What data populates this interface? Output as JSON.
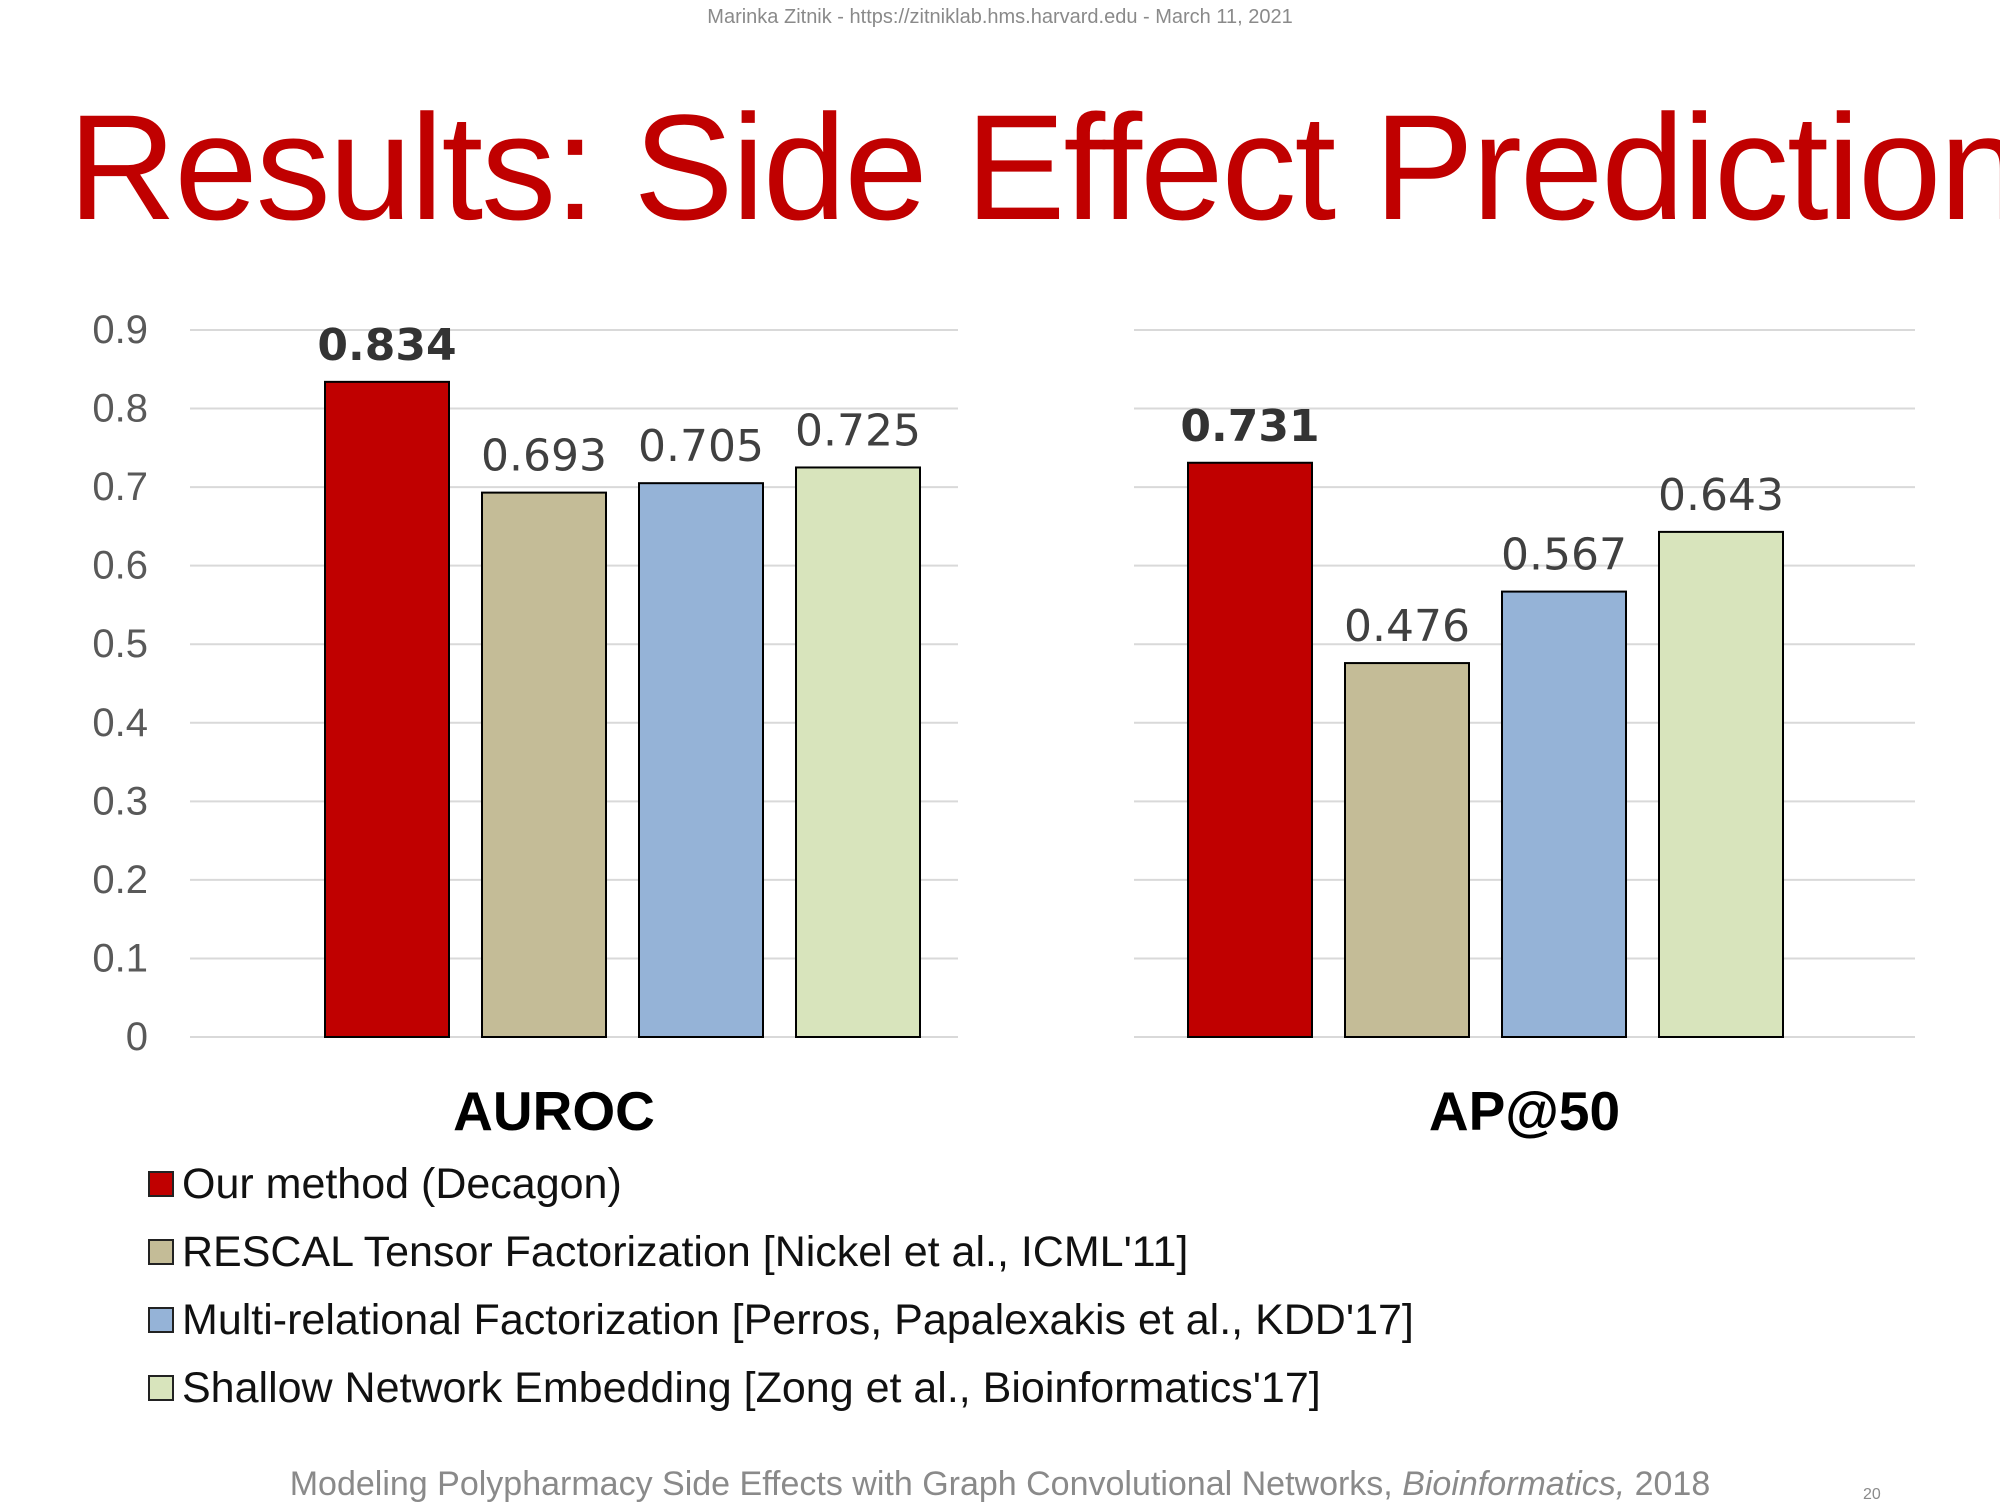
{
  "header": {
    "attribution": "Marinka Zitnik - https://zitniklab.hms.harvard.edu - March 11, 2021"
  },
  "slide": {
    "title": "Results: Side Effect Prediction"
  },
  "colors": {
    "title": "#c00000",
    "grid": "#d9d9d9",
    "axis_text": "#595959",
    "bar_outline": "#000000"
  },
  "chart_data": [
    {
      "type": "bar",
      "xlabel": "AUROC",
      "ylabel": "",
      "ylim": [
        0,
        0.9
      ],
      "yticks": [
        "0",
        "0.1",
        "0.2",
        "0.3",
        "0.4",
        "0.5",
        "0.6",
        "0.7",
        "0.8",
        "0.9"
      ],
      "grid": true,
      "series": [
        {
          "name": "Our method (Decagon)",
          "value": 0.834,
          "label": "0.834",
          "bold": true,
          "color": "#c00000"
        },
        {
          "name": "RESCAL Tensor Factorization [Nickel et al., ICML'11]",
          "value": 0.693,
          "label": "0.693",
          "bold": false,
          "color": "#c4bc97"
        },
        {
          "name": "Multi-relational Factorization [Perros, Papalexakis et al., KDD'17]",
          "value": 0.705,
          "label": "0.705",
          "bold": false,
          "color": "#95b3d7"
        },
        {
          "name": "Shallow Network Embedding [Zong et al., Bioinformatics'17]",
          "value": 0.725,
          "label": "0.725",
          "bold": false,
          "color": "#d8e4bc"
        }
      ]
    },
    {
      "type": "bar",
      "xlabel": "AP@50",
      "ylabel": "",
      "ylim": [
        0,
        0.9
      ],
      "yticks": [],
      "grid": true,
      "series": [
        {
          "name": "Our method (Decagon)",
          "value": 0.731,
          "label": "0.731",
          "bold": true,
          "color": "#c00000"
        },
        {
          "name": "RESCAL Tensor Factorization [Nickel et al., ICML'11]",
          "value": 0.476,
          "label": "0.476",
          "bold": false,
          "color": "#c4bc97"
        },
        {
          "name": "Multi-relational Factorization [Perros, Papalexakis et al., KDD'17]",
          "value": 0.567,
          "label": "0.567",
          "bold": false,
          "color": "#95b3d7"
        },
        {
          "name": "Shallow Network Embedding [Zong et al., Bioinformatics'17]",
          "value": 0.643,
          "label": "0.643",
          "bold": false,
          "color": "#d8e4bc"
        }
      ]
    }
  ],
  "legend": {
    "placement": "bottom-left",
    "items": [
      {
        "label": "Our method (Decagon)",
        "color": "#c00000"
      },
      {
        "label": "RESCAL Tensor Factorization [Nickel et al., ICML'11]",
        "color": "#c4bc97"
      },
      {
        "label": "Multi-relational Factorization [Perros, Papalexakis et al., KDD'17]",
        "color": "#95b3d7"
      },
      {
        "label": "Shallow Network Embedding [Zong et al., Bioinformatics'17]",
        "color": "#d8e4bc"
      }
    ]
  },
  "footer": {
    "citation_prefix": "Modeling Polypharmacy Side Effects with Graph Convolutional Networks, ",
    "citation_journal": "Bioinformatics,",
    "citation_year": " 2018",
    "slide_number": "20"
  }
}
